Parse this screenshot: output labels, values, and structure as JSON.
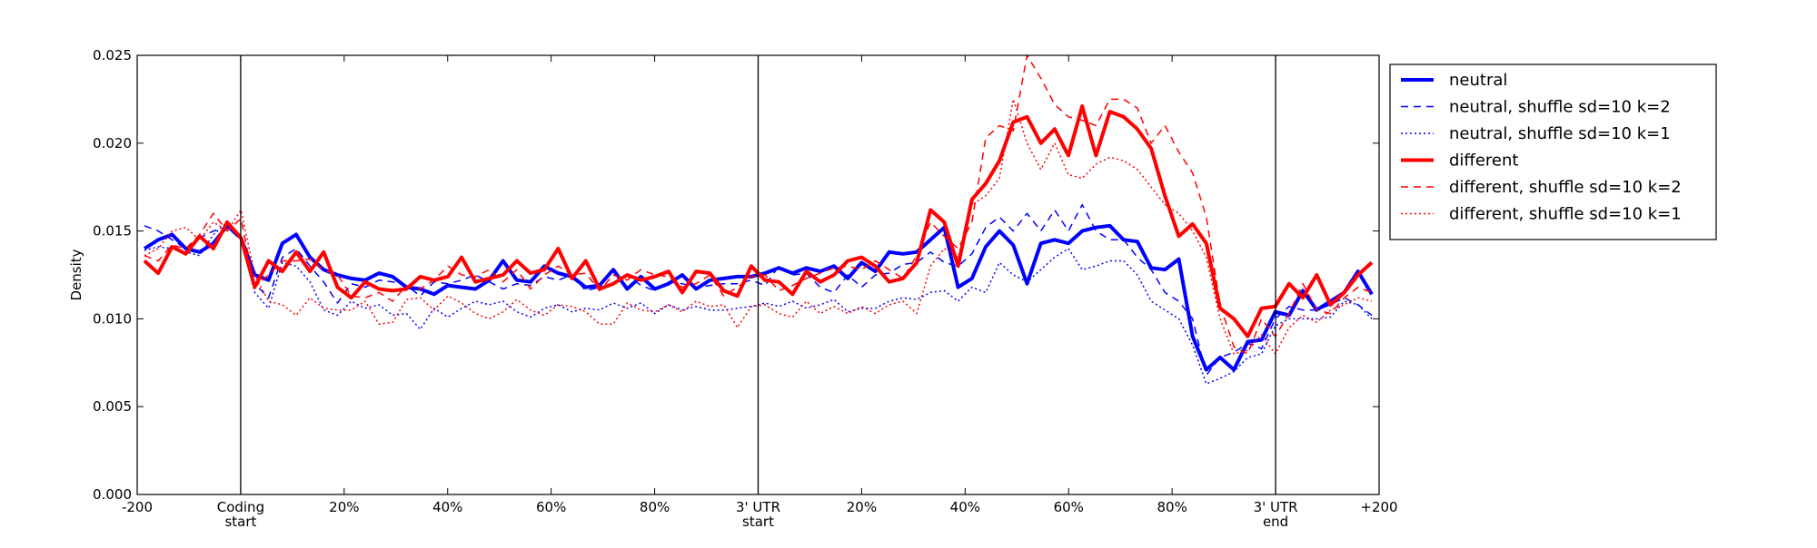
{
  "chart_data": {
    "type": "line",
    "ylabel": "Density",
    "ylim": [
      0,
      0.025
    ],
    "y_ticks": [
      "0.000",
      "0.005",
      "0.010",
      "0.015",
      "0.020",
      "0.025"
    ],
    "y_tick_values": [
      0,
      0.005,
      0.01,
      0.015,
      0.02,
      0.025
    ],
    "x_ticks": [
      {
        "lines": [
          "-200"
        ]
      },
      {
        "lines": [
          "Coding",
          "start"
        ]
      },
      {
        "lines": [
          "20%"
        ]
      },
      {
        "lines": [
          "40%"
        ]
      },
      {
        "lines": [
          "60%"
        ]
      },
      {
        "lines": [
          "80%"
        ]
      },
      {
        "lines": [
          "3' UTR",
          "start"
        ]
      },
      {
        "lines": [
          "20%"
        ]
      },
      {
        "lines": [
          "40%"
        ]
      },
      {
        "lines": [
          "60%"
        ]
      },
      {
        "lines": [
          "80%"
        ]
      },
      {
        "lines": [
          "3' UTR",
          "end"
        ]
      },
      {
        "lines": [
          "+200"
        ]
      }
    ],
    "vertical_lines_at_ticks": [
      1,
      6,
      11
    ],
    "grid": false,
    "legend_position": "right",
    "series": [
      {
        "name": "neutral",
        "color": "#0000ff",
        "style": "solid",
        "width": 4,
        "values": [
          0.014,
          0.0145,
          0.0148,
          0.014,
          0.0138,
          0.0143,
          0.0153,
          0.0146,
          0.0125,
          0.0122,
          0.0143,
          0.0148,
          0.0135,
          0.0128,
          0.0125,
          0.0123,
          0.0122,
          0.0126,
          0.0124,
          0.0118,
          0.0117,
          0.0114,
          0.0119,
          0.0118,
          0.0117,
          0.0122,
          0.0133,
          0.0122,
          0.0121,
          0.013,
          0.0126,
          0.0124,
          0.0118,
          0.0119,
          0.0128,
          0.0117,
          0.0124,
          0.0117,
          0.012,
          0.0125,
          0.0117,
          0.0122,
          0.0123,
          0.0124,
          0.0124,
          0.0126,
          0.0129,
          0.0126,
          0.0129,
          0.0127,
          0.013,
          0.0123,
          0.0132,
          0.0127,
          0.0138,
          0.0137,
          0.0138,
          0.0145,
          0.0152,
          0.0118,
          0.0123,
          0.0141,
          0.015,
          0.0142,
          0.012,
          0.0143,
          0.0145,
          0.0143,
          0.015,
          0.0152,
          0.0153,
          0.0145,
          0.0144,
          0.0129,
          0.0128,
          0.0134,
          0.009,
          0.0071,
          0.0078,
          0.0071,
          0.0087,
          0.0088,
          0.0104,
          0.0102,
          0.0116,
          0.0105,
          0.011,
          0.0115,
          0.0127,
          0.0114
        ]
      },
      {
        "name": "neutral, shuffle sd=10 k=2",
        "color": "#0000ff",
        "style": "dashed",
        "width": 1.5,
        "values": [
          0.0153,
          0.015,
          0.0145,
          0.014,
          0.0146,
          0.015,
          0.0152,
          0.0145,
          0.012,
          0.0112,
          0.0135,
          0.014,
          0.013,
          0.0121,
          0.0109,
          0.012,
          0.0118,
          0.0122,
          0.0121,
          0.0119,
          0.0113,
          0.0121,
          0.012,
          0.0122,
          0.0125,
          0.0121,
          0.0117,
          0.012,
          0.0119,
          0.0124,
          0.0122,
          0.0125,
          0.0116,
          0.0118,
          0.012,
          0.0125,
          0.0119,
          0.0116,
          0.0121,
          0.012,
          0.0118,
          0.0119,
          0.012,
          0.012,
          0.0122,
          0.0119,
          0.013,
          0.0125,
          0.0126,
          0.0118,
          0.0115,
          0.0125,
          0.0118,
          0.0125,
          0.0126,
          0.0131,
          0.0132,
          0.0138,
          0.0132,
          0.013,
          0.0137,
          0.0152,
          0.0158,
          0.015,
          0.016,
          0.015,
          0.0162,
          0.015,
          0.0165,
          0.015,
          0.0145,
          0.0145,
          0.0135,
          0.0128,
          0.0115,
          0.011,
          0.01,
          0.0068,
          0.0078,
          0.0081,
          0.0086,
          0.0083,
          0.01,
          0.0107,
          0.0105,
          0.0105,
          0.0108,
          0.0112,
          0.0108,
          0.0102
        ]
      },
      {
        "name": "neutral, shuffle sd=10 k=1",
        "color": "#0000ff",
        "style": "dotted",
        "width": 1.5,
        "values": [
          0.0139,
          0.0141,
          0.014,
          0.0138,
          0.0136,
          0.0148,
          0.0155,
          0.0147,
          0.0115,
          0.0106,
          0.0132,
          0.013,
          0.0121,
          0.0105,
          0.0102,
          0.011,
          0.0106,
          0.0108,
          0.0102,
          0.0103,
          0.0094,
          0.0106,
          0.0101,
          0.0106,
          0.011,
          0.0108,
          0.011,
          0.0104,
          0.0101,
          0.0106,
          0.0108,
          0.0104,
          0.0106,
          0.0105,
          0.0109,
          0.0106,
          0.0109,
          0.0103,
          0.0108,
          0.0105,
          0.0107,
          0.0105,
          0.0105,
          0.0106,
          0.0107,
          0.0109,
          0.0107,
          0.011,
          0.0106,
          0.0108,
          0.0111,
          0.0104,
          0.0106,
          0.0106,
          0.011,
          0.0112,
          0.0111,
          0.0115,
          0.0116,
          0.011,
          0.0118,
          0.0115,
          0.0132,
          0.0125,
          0.0121,
          0.0128,
          0.0135,
          0.014,
          0.0128,
          0.013,
          0.0133,
          0.0133,
          0.0125,
          0.011,
          0.0105,
          0.01,
          0.0085,
          0.0063,
          0.0066,
          0.007,
          0.0078,
          0.008,
          0.0096,
          0.01,
          0.01,
          0.01,
          0.0101,
          0.011,
          0.0108,
          0.01
        ]
      },
      {
        "name": "different",
        "color": "#ff0000",
        "style": "solid",
        "width": 4,
        "values": [
          0.0133,
          0.0126,
          0.0141,
          0.0137,
          0.0147,
          0.014,
          0.0155,
          0.0146,
          0.0118,
          0.0133,
          0.0127,
          0.0138,
          0.0127,
          0.0138,
          0.0118,
          0.0112,
          0.0121,
          0.0117,
          0.0116,
          0.0117,
          0.0124,
          0.0122,
          0.0124,
          0.0135,
          0.0121,
          0.0123,
          0.0125,
          0.0133,
          0.0126,
          0.0128,
          0.014,
          0.0123,
          0.0133,
          0.0117,
          0.012,
          0.0125,
          0.0122,
          0.0124,
          0.0127,
          0.0115,
          0.0127,
          0.0126,
          0.0116,
          0.0113,
          0.013,
          0.0122,
          0.0121,
          0.0114,
          0.0127,
          0.0121,
          0.0125,
          0.0133,
          0.0135,
          0.013,
          0.0121,
          0.0123,
          0.0132,
          0.0162,
          0.0155,
          0.013,
          0.0168,
          0.0177,
          0.019,
          0.0212,
          0.0215,
          0.02,
          0.0208,
          0.0193,
          0.0221,
          0.0193,
          0.0218,
          0.0215,
          0.0208,
          0.0197,
          0.017,
          0.0147,
          0.0154,
          0.0143,
          0.0106,
          0.01,
          0.009,
          0.0106,
          0.0107,
          0.012,
          0.0112,
          0.0125,
          0.0108,
          0.0115,
          0.0125,
          0.0132
        ]
      },
      {
        "name": "different, shuffle sd=10 k=2",
        "color": "#ff0000",
        "style": "dashed",
        "width": 1.5,
        "values": [
          0.0136,
          0.0133,
          0.0142,
          0.014,
          0.0148,
          0.016,
          0.015,
          0.0157,
          0.0118,
          0.0125,
          0.0133,
          0.0133,
          0.0134,
          0.0128,
          0.0125,
          0.0113,
          0.0112,
          0.0115,
          0.011,
          0.0119,
          0.0117,
          0.0122,
          0.013,
          0.0125,
          0.0124,
          0.0128,
          0.0121,
          0.0128,
          0.0117,
          0.0125,
          0.013,
          0.0125,
          0.0126,
          0.0116,
          0.0125,
          0.0122,
          0.0128,
          0.0125,
          0.0124,
          0.0118,
          0.012,
          0.0125,
          0.0113,
          0.0118,
          0.0124,
          0.0125,
          0.0116,
          0.0119,
          0.0123,
          0.0126,
          0.0129,
          0.013,
          0.0128,
          0.0133,
          0.0128,
          0.0123,
          0.0136,
          0.0155,
          0.0147,
          0.014,
          0.0155,
          0.0203,
          0.021,
          0.0207,
          0.025,
          0.0237,
          0.0222,
          0.0215,
          0.0213,
          0.021,
          0.0225,
          0.0225,
          0.022,
          0.02,
          0.021,
          0.0195,
          0.0183,
          0.0158,
          0.0108,
          0.0084,
          0.008,
          0.01,
          0.009,
          0.0103,
          0.012,
          0.0105,
          0.0103,
          0.0112,
          0.0118,
          0.0115
        ]
      },
      {
        "name": "different, shuffle sd=10 k=1",
        "color": "#ff0000",
        "style": "dotted",
        "width": 1.5,
        "values": [
          0.0136,
          0.014,
          0.015,
          0.0152,
          0.0145,
          0.0155,
          0.015,
          0.0162,
          0.0125,
          0.011,
          0.0108,
          0.0102,
          0.0112,
          0.0106,
          0.0105,
          0.0105,
          0.011,
          0.0097,
          0.0098,
          0.0111,
          0.0112,
          0.0105,
          0.0113,
          0.0109,
          0.0103,
          0.01,
          0.0104,
          0.0111,
          0.0105,
          0.0102,
          0.0108,
          0.0107,
          0.0104,
          0.0097,
          0.0097,
          0.0109,
          0.0105,
          0.0104,
          0.0108,
          0.0104,
          0.011,
          0.0107,
          0.0108,
          0.0095,
          0.0107,
          0.0108,
          0.0103,
          0.0101,
          0.011,
          0.0103,
          0.0107,
          0.0103,
          0.0107,
          0.0103,
          0.0108,
          0.011,
          0.0103,
          0.013,
          0.014,
          0.0135,
          0.0165,
          0.017,
          0.018,
          0.0225,
          0.02,
          0.0185,
          0.02,
          0.0182,
          0.018,
          0.0188,
          0.0192,
          0.019,
          0.0185,
          0.0175,
          0.0165,
          0.016,
          0.015,
          0.0135,
          0.01,
          0.008,
          0.0082,
          0.0091,
          0.008,
          0.0095,
          0.0102,
          0.0098,
          0.0105,
          0.0108,
          0.0112,
          0.011
        ]
      }
    ]
  }
}
